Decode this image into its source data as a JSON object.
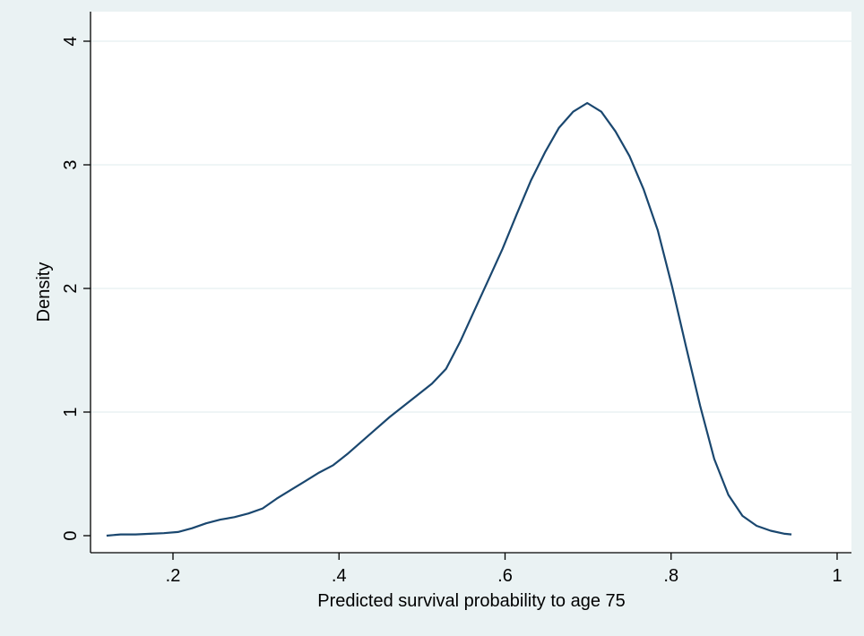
{
  "chart_data": {
    "type": "line",
    "title": "",
    "xlabel": "Predicted survival probability to age 75",
    "ylabel": "Density",
    "xlim": [
      0.1,
      1.0
    ],
    "ylim": [
      0,
      4
    ],
    "x_ticks": [
      0.2,
      0.4,
      0.6,
      0.8,
      1.0
    ],
    "x_tick_labels": [
      ".2",
      ".4",
      ".6",
      ".8",
      "1"
    ],
    "y_ticks": [
      0,
      1,
      2,
      3,
      4
    ],
    "y_tick_labels": [
      "0",
      "1",
      "2",
      "3",
      "4"
    ],
    "grid": "horizontal",
    "colors": {
      "background": "#eaf2f3",
      "plot": "#ffffff",
      "line": "#1a476f",
      "grid": "#eaf2f3"
    },
    "series": [
      {
        "x": [
          0.12,
          0.137,
          0.155,
          0.172,
          0.189,
          0.206,
          0.223,
          0.24,
          0.257,
          0.274,
          0.291,
          0.308,
          0.325,
          0.342,
          0.359,
          0.376,
          0.393,
          0.41,
          0.427,
          0.444,
          0.461,
          0.478,
          0.495,
          0.512,
          0.529,
          0.546,
          0.563,
          0.58,
          0.597,
          0.614,
          0.631,
          0.648,
          0.665,
          0.682,
          0.699,
          0.716,
          0.733,
          0.75,
          0.767,
          0.784,
          0.801,
          0.818,
          0.835,
          0.852,
          0.869,
          0.886,
          0.903,
          0.92,
          0.937,
          0.945
        ],
        "y": [
          0.0,
          0.01,
          0.01,
          0.015,
          0.02,
          0.03,
          0.06,
          0.1,
          0.13,
          0.15,
          0.18,
          0.22,
          0.3,
          0.37,
          0.44,
          0.51,
          0.57,
          0.66,
          0.76,
          0.86,
          0.96,
          1.05,
          1.14,
          1.23,
          1.35,
          1.57,
          1.82,
          2.07,
          2.32,
          2.6,
          2.87,
          3.1,
          3.3,
          3.43,
          3.5,
          3.43,
          3.27,
          3.07,
          2.8,
          2.47,
          2.02,
          1.53,
          1.05,
          0.62,
          0.33,
          0.16,
          0.08,
          0.04,
          0.015,
          0.01
        ]
      }
    ]
  }
}
